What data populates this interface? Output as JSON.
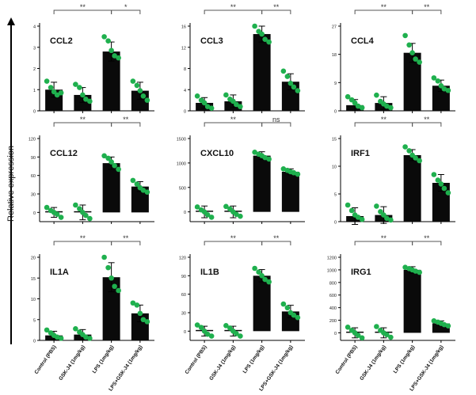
{
  "figure": {
    "y_label": "Relative expression",
    "x_categories": [
      "Control (PBS)",
      "GSK-J4 (1mg/kg)",
      "LPS (1mg/kg)",
      "LPS+GSK-J4 (1mg/kg)"
    ]
  },
  "colors": {
    "bar": "#0a0a0a",
    "point": "#1fb04e",
    "line": "#555555"
  },
  "chart_data": [
    {
      "type": "bar",
      "title": "CCL2",
      "categories": [
        "Control (PBS)",
        "GSK-J4 (1mg/kg)",
        "LPS (1mg/kg)",
        "LPS+GSK-J4 (1mg/kg)"
      ],
      "values": [
        1.0,
        0.75,
        2.8,
        0.95
      ],
      "errors": [
        0.35,
        0.35,
        0.45,
        0.4
      ],
      "points": [
        [
          1.4,
          1.1,
          0.9,
          0.75,
          0.85
        ],
        [
          1.25,
          1.1,
          0.75,
          0.55,
          0.45
        ],
        [
          3.5,
          3.3,
          2.85,
          2.6,
          2.5
        ],
        [
          1.4,
          1.2,
          0.95,
          0.7,
          0.5
        ]
      ],
      "ylim": [
        0,
        4
      ],
      "yticks": [
        "0",
        "1",
        "2",
        "3",
        "4"
      ],
      "comparisons": [
        {
          "from": 0,
          "to": 2,
          "label": "**"
        },
        {
          "from": 2,
          "to": 3,
          "label": "*"
        }
      ]
    },
    {
      "type": "bar",
      "title": "CCL3",
      "categories": [
        "Control (PBS)",
        "GSK-J4 (1mg/kg)",
        "LPS (1mg/kg)",
        "LPS+GSK-J4 (1mg/kg)"
      ],
      "values": [
        1.5,
        1.8,
        14.5,
        5.5
      ],
      "errors": [
        1.0,
        1.2,
        1.5,
        1.5
      ],
      "points": [
        [
          2.8,
          2.0,
          1.5,
          0.8,
          0.5
        ],
        [
          3.0,
          2.2,
          1.8,
          1.2,
          0.8
        ],
        [
          16,
          15,
          14.5,
          13.5,
          13
        ],
        [
          7.5,
          6.5,
          5.2,
          4.5,
          3.8
        ]
      ],
      "ylim": [
        0,
        16
      ],
      "yticks": [
        "0",
        "4",
        "8",
        "12",
        "16"
      ],
      "comparisons": [
        {
          "from": 0,
          "to": 2,
          "label": "**"
        },
        {
          "from": 2,
          "to": 3,
          "label": "**"
        }
      ]
    },
    {
      "type": "bar",
      "title": "CCL4",
      "categories": [
        "Control (PBS)",
        "GSK-J4 (1mg/kg)",
        "LPS (1mg/kg)",
        "LPS+GSK-J4 (1mg/kg)"
      ],
      "values": [
        1.8,
        2.5,
        18.5,
        8.0
      ],
      "errors": [
        1.8,
        2.0,
        3.0,
        1.8
      ],
      "points": [
        [
          4.5,
          3.5,
          2.5,
          1.5,
          1.0
        ],
        [
          5.0,
          3.0,
          2.2,
          1.5,
          1.0
        ],
        [
          24,
          21,
          18.5,
          16.5,
          15.5
        ],
        [
          10.5,
          9.5,
          8.0,
          7.0,
          6.5
        ]
      ],
      "ylim": [
        0,
        27
      ],
      "yticks": [
        "0",
        "9",
        "18",
        "27"
      ],
      "comparisons": [
        {
          "from": 0,
          "to": 2,
          "label": "**"
        },
        {
          "from": 2,
          "to": 3,
          "label": "**"
        }
      ]
    },
    {
      "type": "bar",
      "title": "CCL12",
      "categories": [
        "Control (PBS)",
        "GSK-J4 (1mg/kg)",
        "LPS (1mg/kg)",
        "LPS+GSK-J4 (1mg/kg)"
      ],
      "values": [
        0,
        0,
        80,
        42
      ],
      "errors": [
        8,
        12,
        10,
        8
      ],
      "points": [
        [
          8,
          3,
          0,
          -3,
          -8
        ],
        [
          12,
          6,
          0,
          -5,
          -10
        ],
        [
          92,
          88,
          82,
          76,
          70
        ],
        [
          52,
          46,
          40,
          36,
          33
        ]
      ],
      "ylim": [
        -15,
        120
      ],
      "yticks": [
        "0",
        "30",
        "60",
        "90",
        "120"
      ],
      "ytick_values": [
        0,
        30,
        60,
        90,
        120
      ],
      "comparisons": [
        {
          "from": 0,
          "to": 2,
          "label": "**"
        },
        {
          "from": 2,
          "to": 3,
          "label": "**"
        }
      ]
    },
    {
      "type": "bar",
      "title": "CXCL10",
      "categories": [
        "Control (PBS)",
        "GSK-J4 (1mg/kg)",
        "LPS (1mg/kg)",
        "LPS+GSK-J4 (1mg/kg)"
      ],
      "values": [
        0,
        0,
        1150,
        820
      ],
      "errors": [
        120,
        120,
        80,
        60
      ],
      "points": [
        [
          100,
          40,
          0,
          -60,
          -110
        ],
        [
          110,
          60,
          0,
          -50,
          -90
        ],
        [
          1220,
          1180,
          1150,
          1110,
          1080
        ],
        [
          880,
          850,
          820,
          800,
          770
        ]
      ],
      "ylim": [
        -200,
        1500
      ],
      "yticks": [
        "0",
        "500",
        "1000",
        "1500"
      ],
      "ytick_values": [
        0,
        500,
        1000,
        1500
      ],
      "comparisons": [
        {
          "from": 0,
          "to": 2,
          "label": "**"
        },
        {
          "from": 2,
          "to": 3,
          "label": "ns"
        }
      ]
    },
    {
      "type": "bar",
      "title": "IRF1",
      "categories": [
        "Control (PBS)",
        "GSK-J4 (1mg/kg)",
        "LPS (1mg/kg)",
        "LPS+GSK-J4 (1mg/kg)"
      ],
      "values": [
        1.0,
        1.2,
        12.0,
        7.0
      ],
      "errors": [
        1.5,
        1.5,
        1.0,
        1.5
      ],
      "points": [
        [
          3.0,
          2.0,
          1.2,
          0.8,
          0.4
        ],
        [
          2.8,
          1.8,
          1.2,
          0.6,
          0.3
        ],
        [
          13.5,
          12.8,
          12.0,
          11.5,
          11.0
        ],
        [
          8.5,
          7.5,
          6.8,
          6.0,
          5.2
        ]
      ],
      "ylim": [
        0,
        15
      ],
      "yticks": [
        "0",
        "5",
        "10",
        "15"
      ],
      "comparisons": [
        {
          "from": 0,
          "to": 2,
          "label": "**"
        },
        {
          "from": 2,
          "to": 3,
          "label": "**"
        }
      ]
    },
    {
      "type": "bar",
      "title": "IL1A",
      "categories": [
        "Control (PBS)",
        "GSK-J4 (1mg/kg)",
        "LPS (1mg/kg)",
        "LPS+GSK-J4 (1mg/kg)"
      ],
      "values": [
        1.2,
        1.4,
        15.2,
        6.5
      ],
      "errors": [
        1.0,
        1.2,
        3.5,
        2.0
      ],
      "points": [
        [
          2.5,
          1.8,
          1.2,
          0.8,
          0.5
        ],
        [
          2.8,
          2.0,
          1.4,
          0.8,
          0.5
        ],
        [
          20,
          17.5,
          15,
          13,
          12
        ],
        [
          9,
          8.5,
          6.5,
          5.0,
          4.5
        ]
      ],
      "ylim": [
        0,
        20
      ],
      "yticks": [
        "0",
        "5",
        "10",
        "15",
        "20"
      ],
      "comparisons": [
        {
          "from": 0,
          "to": 2,
          "label": "**"
        },
        {
          "from": 2,
          "to": 3,
          "label": "**"
        }
      ]
    },
    {
      "type": "bar",
      "title": "IL1B",
      "categories": [
        "Control (PBS)",
        "GSK-J4 (1mg/kg)",
        "LPS (1mg/kg)",
        "LPS+GSK-J4 (1mg/kg)"
      ],
      "values": [
        0,
        0,
        90,
        32
      ],
      "errors": [
        8,
        8,
        10,
        10
      ],
      "points": [
        [
          10,
          6,
          0,
          -5,
          -8
        ],
        [
          9,
          5,
          0,
          -4,
          -8
        ],
        [
          102,
          96,
          90,
          84,
          80
        ],
        [
          44,
          38,
          30,
          26,
          22
        ]
      ],
      "ylim": [
        -15,
        120
      ],
      "yticks": [
        "0",
        "30",
        "60",
        "90",
        "120"
      ],
      "ytick_values": [
        0,
        30,
        60,
        90,
        120
      ],
      "comparisons": [
        {
          "from": 0,
          "to": 2,
          "label": "**"
        },
        {
          "from": 2,
          "to": 3,
          "label": "**"
        }
      ]
    },
    {
      "type": "bar",
      "title": "IRG1",
      "categories": [
        "Control (PBS)",
        "GSK-J4 (1mg/kg)",
        "LPS (1mg/kg)",
        "LPS+GSK-J4 (1mg/kg)"
      ],
      "values": [
        0,
        0,
        1000,
        150
      ],
      "errors": [
        80,
        80,
        50,
        40
      ],
      "points": [
        [
          90,
          40,
          0,
          -40,
          -80
        ],
        [
          100,
          40,
          0,
          -30,
          -70
        ],
        [
          1040,
          1020,
          1000,
          980,
          960
        ],
        [
          190,
          170,
          150,
          130,
          110
        ]
      ],
      "ylim": [
        -120,
        1200
      ],
      "yticks": [
        "0",
        "200",
        "400",
        "600",
        "800",
        "1000",
        "1200"
      ],
      "ytick_values": [
        0,
        200,
        400,
        600,
        800,
        1000,
        1200
      ],
      "comparisons": [
        {
          "from": 0,
          "to": 2,
          "label": "**"
        },
        {
          "from": 2,
          "to": 3,
          "label": "**"
        }
      ]
    }
  ]
}
